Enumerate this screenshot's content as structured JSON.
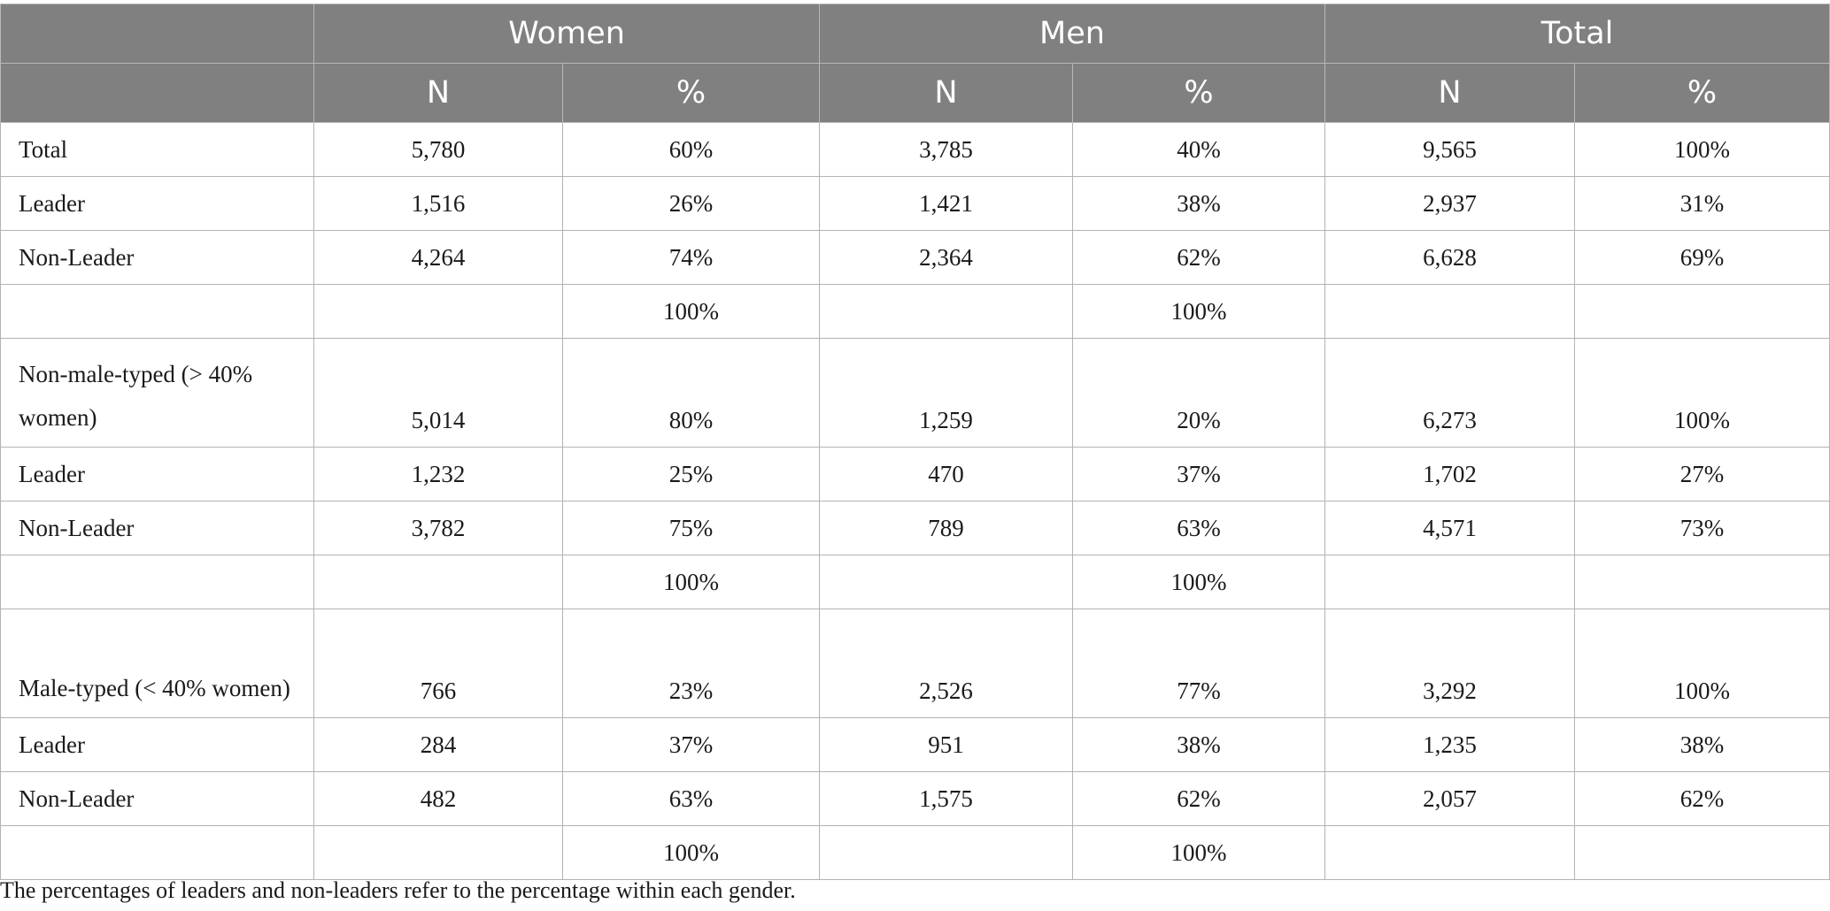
{
  "header": {
    "groups": [
      "Women",
      "Men",
      "Total"
    ],
    "subheaders": [
      "N",
      "%",
      "N",
      "%",
      "N",
      "%"
    ]
  },
  "rows": [
    {
      "label": "Total",
      "cells": [
        "5,780",
        "60%",
        "3,785",
        "40%",
        "9,565",
        "100%"
      ]
    },
    {
      "label": "Leader",
      "cells": [
        "1,516",
        "26%",
        "1,421",
        "38%",
        "2,937",
        "31%"
      ]
    },
    {
      "label": "Non-Leader",
      "cells": [
        "4,264",
        "74%",
        "2,364",
        "62%",
        "6,628",
        "69%"
      ]
    },
    {
      "label": "",
      "cells": [
        "",
        "100%",
        "",
        "100%",
        "",
        ""
      ]
    },
    {
      "label": "Non-male-typed (> 40% women)",
      "cells": [
        "5,014",
        "80%",
        "1,259",
        "20%",
        "6,273",
        "100%"
      ]
    },
    {
      "label": "Leader",
      "cells": [
        "1,232",
        "25%",
        "470",
        "37%",
        "1,702",
        "27%"
      ]
    },
    {
      "label": "Non-Leader",
      "cells": [
        "3,782",
        "75%",
        "789",
        "63%",
        "4,571",
        "73%"
      ]
    },
    {
      "label": "",
      "cells": [
        "",
        "100%",
        "",
        "100%",
        "",
        ""
      ]
    },
    {
      "label": "Male-typed (< 40% women)",
      "cells": [
        "766",
        "23%",
        "2,526",
        "77%",
        "3,292",
        "100%"
      ]
    },
    {
      "label": "Leader",
      "cells": [
        "284",
        "37%",
        "951",
        "38%",
        "1,235",
        "38%"
      ]
    },
    {
      "label": "Non-Leader",
      "cells": [
        "482",
        "63%",
        "1,575",
        "62%",
        "2,057",
        "62%"
      ]
    },
    {
      "label": "",
      "cells": [
        "",
        "100%",
        "",
        "100%",
        "",
        ""
      ]
    }
  ],
  "footnote": "The percentages of leaders and non-leaders refer to the percentage within each gender."
}
